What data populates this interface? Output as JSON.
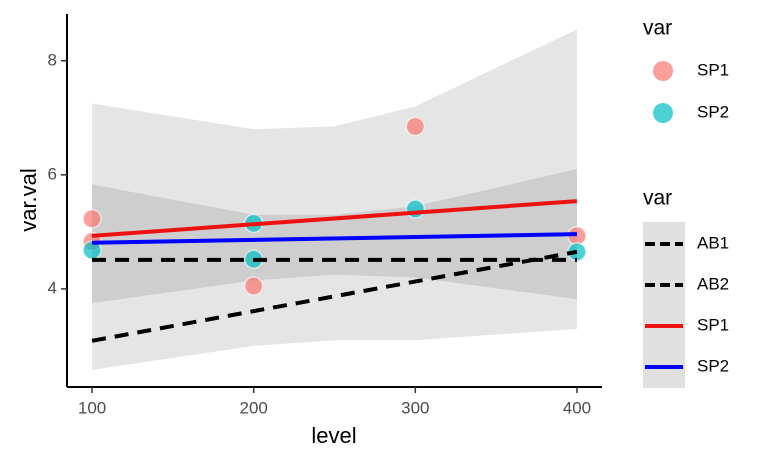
{
  "chart_data": {
    "type": "scatter",
    "xlabel": "level",
    "ylabel": "var.val",
    "xlim": [
      84.5,
      415.5
    ],
    "ylim": [
      2.28,
      8.82
    ],
    "xticks": [
      100,
      200,
      300,
      400
    ],
    "yticks": [
      4,
      6,
      8
    ],
    "bands": [
      {
        "color": "#cccccc",
        "x": [
          100,
          200,
          250,
          300,
          400
        ],
        "upper": [
          7.25,
          6.8,
          6.85,
          7.2,
          8.55
        ],
        "lower": [
          2.58,
          3.0,
          3.1,
          3.1,
          3.3
        ]
      },
      {
        "color": "#b8b8b8",
        "x": [
          100,
          200,
          250,
          300,
          400
        ],
        "upper": [
          5.83,
          5.3,
          5.3,
          5.45,
          6.1
        ],
        "lower": [
          3.75,
          4.15,
          4.25,
          4.2,
          3.82
        ]
      }
    ],
    "point_legend_title": "var",
    "series": [
      {
        "name": "SP1",
        "color": "#F8766D",
        "x": [
          100,
          100,
          200,
          300,
          400
        ],
        "values": [
          5.23,
          4.83,
          4.05,
          6.85,
          4.93
        ]
      },
      {
        "name": "SP2",
        "color": "#00BFC4",
        "x": [
          100,
          200,
          200,
          300,
          400
        ],
        "values": [
          4.68,
          5.15,
          4.52,
          5.4,
          4.65
        ]
      }
    ],
    "line_legend_title": "var",
    "line_series": [
      {
        "name": "AB1",
        "color": "#000000",
        "linestyle": "dashed",
        "x": [
          100,
          400
        ],
        "values": [
          4.51,
          4.51
        ]
      },
      {
        "name": "AB2",
        "color": "#000000",
        "linestyle": "dashed",
        "x": [
          100,
          400
        ],
        "values": [
          3.09,
          4.65
        ]
      },
      {
        "name": "SP1",
        "color": "#EE1111",
        "linestyle": "solid",
        "x": [
          100,
          400
        ],
        "values": [
          4.93,
          5.54
        ]
      },
      {
        "name": "SP2",
        "color": "#0000FF",
        "linestyle": "solid",
        "x": [
          100,
          400
        ],
        "values": [
          4.81,
          4.96
        ]
      }
    ]
  }
}
